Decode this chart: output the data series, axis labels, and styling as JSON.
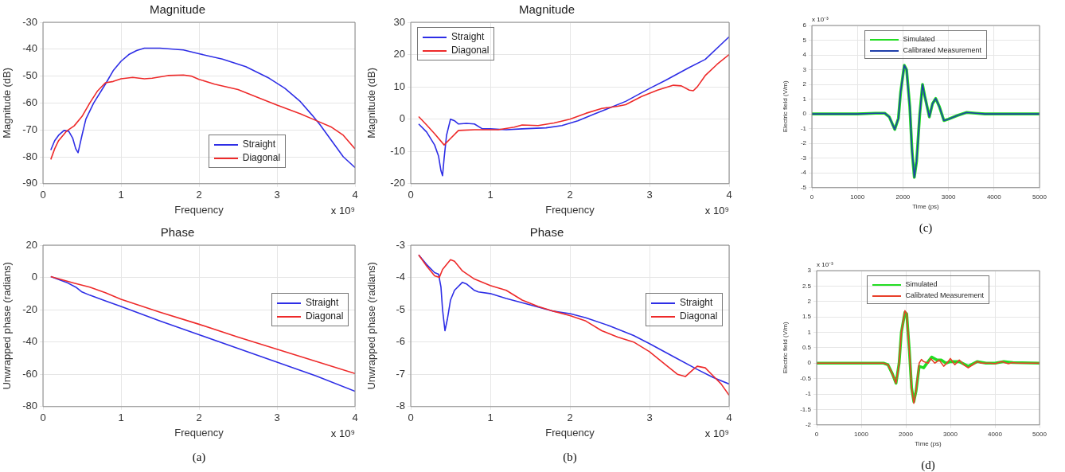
{
  "chart_data": [
    {
      "type": "line",
      "title": "Magnitude",
      "xlabel": "Frequency",
      "ylabel": "Magnitude (dB)",
      "xlim": [
        0,
        4
      ],
      "ylim": [
        -90,
        -30
      ],
      "xticks": [
        0,
        1,
        2,
        3,
        4
      ],
      "yticks": [
        -90,
        -80,
        -70,
        -60,
        -50,
        -40,
        -30
      ],
      "grid": true,
      "legend": "bottom right",
      "annotations": [
        "x 10⁹"
      ],
      "series": [
        {
          "name": "Straight",
          "color": "#2e2ee6",
          "x": [
            0.1,
            0.15,
            0.2,
            0.27,
            0.33,
            0.38,
            0.42,
            0.45,
            0.5,
            0.55,
            0.65,
            0.8,
            0.9,
            1.0,
            1.1,
            1.2,
            1.3,
            1.5,
            1.8,
            2.0,
            2.3,
            2.6,
            2.9,
            3.1,
            3.3,
            3.45,
            3.55,
            3.7,
            3.85,
            4.0
          ],
          "values": [
            -77.5,
            -74,
            -72,
            -70.2,
            -70.5,
            -73,
            -77,
            -78.5,
            -72,
            -66,
            -60,
            -53,
            -48,
            -44.5,
            -42,
            -40.5,
            -39.6,
            -39.6,
            -40.3,
            -41.7,
            -43.7,
            -46.5,
            -50.8,
            -54.5,
            -59.5,
            -64.5,
            -68,
            -74,
            -80,
            -84
          ]
        },
        {
          "name": "Diagonal",
          "color": "#ee2a2a",
          "x": [
            0.1,
            0.15,
            0.2,
            0.3,
            0.4,
            0.5,
            0.6,
            0.7,
            0.8,
            0.9,
            1.0,
            1.15,
            1.3,
            1.4,
            1.6,
            1.8,
            1.9,
            2.0,
            2.2,
            2.5,
            2.8,
            3.0,
            3.3,
            3.5,
            3.7,
            3.85,
            4.0
          ],
          "values": [
            -81,
            -77,
            -74,
            -70.5,
            -68.5,
            -65,
            -60,
            -55.5,
            -52.5,
            -52,
            -51,
            -50.5,
            -51,
            -50.8,
            -49.8,
            -49.6,
            -50,
            -51.2,
            -53,
            -55,
            -58.5,
            -60.8,
            -64,
            -66.5,
            -69,
            -72,
            -77
          ]
        }
      ]
    },
    {
      "type": "line",
      "title": "Magnitude",
      "xlabel": "Frequency",
      "ylabel": "Magnitude (dB)",
      "xlim": [
        0,
        4
      ],
      "ylim": [
        -20,
        30
      ],
      "xticks": [
        0,
        1,
        2,
        3,
        4
      ],
      "yticks": [
        -20,
        -10,
        0,
        10,
        20,
        30
      ],
      "grid": true,
      "legend": "top left",
      "annotations": [
        "x 10⁹"
      ],
      "series": [
        {
          "name": "Straight",
          "color": "#2e2ee6",
          "x": [
            0.1,
            0.2,
            0.3,
            0.35,
            0.38,
            0.4,
            0.42,
            0.45,
            0.5,
            0.55,
            0.6,
            0.7,
            0.8,
            0.9,
            1.0,
            1.2,
            1.4,
            1.7,
            1.9,
            2.1,
            2.3,
            2.5,
            2.7,
            3.0,
            3.2,
            3.5,
            3.7,
            4.0
          ],
          "values": [
            -1.5,
            -4,
            -8,
            -11.5,
            -16,
            -17.5,
            -12,
            -5,
            0,
            -0.5,
            -1.5,
            -1.3,
            -1.5,
            -3,
            -3,
            -3.3,
            -3,
            -2.7,
            -2,
            -0.5,
            1.5,
            3.5,
            5.5,
            9.5,
            12,
            16,
            18.5,
            25.5
          ]
        },
        {
          "name": "Diagonal",
          "color": "#ee2a2a",
          "x": [
            0.1,
            0.2,
            0.3,
            0.42,
            0.5,
            0.6,
            0.8,
            1.0,
            1.1,
            1.3,
            1.4,
            1.6,
            1.8,
            2.0,
            2.2,
            2.4,
            2.6,
            2.7,
            2.9,
            3.1,
            3.3,
            3.4,
            3.5,
            3.55,
            3.6,
            3.7,
            3.85,
            4.0
          ],
          "values": [
            0.8,
            -1.8,
            -4.5,
            -8,
            -6,
            -3.5,
            -3.3,
            -3.3,
            -3.3,
            -2.5,
            -1.8,
            -2,
            -1.2,
            0,
            1.8,
            3.3,
            4,
            4.5,
            7,
            9,
            10.5,
            10.3,
            9,
            8.8,
            10,
            13.5,
            17,
            20
          ]
        }
      ]
    },
    {
      "type": "line",
      "xlabel": "Time (ps)",
      "ylabel": "Electric field (V/m)",
      "xlim": [
        0,
        5000
      ],
      "ylim": [
        -5,
        6
      ],
      "xticks": [
        0,
        1000,
        2000,
        3000,
        4000,
        5000
      ],
      "yticks": [
        -5,
        -4,
        -3,
        -2,
        -1,
        0,
        1,
        2,
        3,
        4,
        5,
        6
      ],
      "grid": true,
      "legend": "top",
      "annotations": [
        "x 10⁻³",
        "(c)"
      ],
      "series": [
        {
          "name": "Simulated",
          "color": "#22dd22",
          "x": [
            0,
            500,
            1000,
            1400,
            1600,
            1700,
            1820,
            1900,
            1950,
            2030,
            2080,
            2150,
            2200,
            2250,
            2300,
            2370,
            2430,
            2480,
            2580,
            2650,
            2720,
            2800,
            2900,
            3000,
            3200,
            3400,
            3600,
            3800,
            4000,
            5000
          ],
          "values": [
            0,
            0,
            0,
            0.05,
            0.05,
            -0.2,
            -1.05,
            -0.3,
            1.5,
            3.3,
            3.0,
            0.5,
            -2.5,
            -4.3,
            -3.2,
            0,
            2.0,
            1.2,
            -0.2,
            0.7,
            1.05,
            0.5,
            -0.45,
            -0.35,
            -0.1,
            0.1,
            0.05,
            0,
            0,
            0
          ]
        },
        {
          "name": "Calibrated Measurement",
          "color": "#1f3faa",
          "x": [
            0,
            500,
            1000,
            1400,
            1600,
            1700,
            1820,
            1900,
            1950,
            2030,
            2080,
            2150,
            2200,
            2250,
            2300,
            2370,
            2430,
            2480,
            2580,
            2650,
            2720,
            2800,
            2900,
            3000,
            3200,
            3400,
            3600,
            3800,
            4000,
            5000
          ],
          "values": [
            0,
            0,
            0,
            0.05,
            0.05,
            -0.2,
            -1.05,
            -0.3,
            1.5,
            3.3,
            3.0,
            0.5,
            -2.5,
            -4.3,
            -3.2,
            0,
            2.0,
            1.2,
            -0.2,
            0.7,
            1.05,
            0.5,
            -0.45,
            -0.35,
            -0.1,
            0.1,
            0.05,
            0,
            0,
            0
          ]
        }
      ]
    },
    {
      "type": "line",
      "title": "Phase",
      "xlabel": "Frequency",
      "ylabel": "Unwrapped phase (radians)",
      "xlim": [
        0,
        4
      ],
      "ylim": [
        -80,
        20
      ],
      "xticks": [
        0,
        1,
        2,
        3,
        4
      ],
      "yticks": [
        -80,
        -60,
        -40,
        -20,
        0,
        20
      ],
      "grid": true,
      "legend": "right",
      "annotations": [
        "x 10⁹",
        "(a)"
      ],
      "series": [
        {
          "name": "Straight",
          "color": "#2e2ee6",
          "x": [
            0.1,
            0.3,
            0.42,
            0.5,
            0.6,
            0.8,
            1.0,
            1.5,
            2.0,
            2.5,
            3.0,
            3.5,
            4.0
          ],
          "values": [
            0.5,
            -3,
            -6,
            -9,
            -11,
            -14.5,
            -18,
            -27,
            -35.5,
            -44,
            -52.5,
            -61,
            -70.5
          ]
        },
        {
          "name": "Diagonal",
          "color": "#ee2a2a",
          "x": [
            0.1,
            0.4,
            0.6,
            0.8,
            1.0,
            1.5,
            2.0,
            2.5,
            3.0,
            3.5,
            4.0
          ],
          "values": [
            0.5,
            -3.5,
            -6,
            -9.5,
            -13.5,
            -21.5,
            -29,
            -37,
            -44.5,
            -52,
            -59.5
          ]
        }
      ]
    },
    {
      "type": "line",
      "title": "Phase",
      "xlabel": "Frequency",
      "ylabel": "Unwrapped phase (radians)",
      "xlim": [
        0,
        4
      ],
      "ylim": [
        -8,
        -3
      ],
      "xticks": [
        0,
        1,
        2,
        3,
        4
      ],
      "yticks": [
        -8,
        -7,
        -6,
        -5,
        -4,
        -3
      ],
      "grid": true,
      "legend": "right",
      "annotations": [
        "x 10⁹",
        "(b)"
      ],
      "series": [
        {
          "name": "Straight",
          "color": "#2e2ee6",
          "x": [
            0.1,
            0.2,
            0.3,
            0.35,
            0.38,
            0.4,
            0.43,
            0.46,
            0.5,
            0.55,
            0.65,
            0.7,
            0.8,
            0.85,
            1.0,
            1.2,
            1.5,
            1.8,
            2.0,
            2.2,
            2.5,
            2.8,
            3.0,
            3.3,
            3.6,
            3.8,
            4.0
          ],
          "values": [
            -3.3,
            -3.6,
            -3.85,
            -3.9,
            -4.3,
            -5,
            -5.65,
            -5.3,
            -4.7,
            -4.4,
            -4.15,
            -4.2,
            -4.4,
            -4.45,
            -4.5,
            -4.65,
            -4.85,
            -5.05,
            -5.12,
            -5.25,
            -5.5,
            -5.8,
            -6.05,
            -6.45,
            -6.85,
            -7.1,
            -7.3
          ]
        },
        {
          "name": "Diagonal",
          "color": "#ee2a2a",
          "x": [
            0.1,
            0.2,
            0.3,
            0.36,
            0.4,
            0.5,
            0.55,
            0.65,
            0.8,
            1.0,
            1.2,
            1.4,
            1.6,
            1.8,
            2.0,
            2.2,
            2.4,
            2.6,
            2.8,
            3.0,
            3.2,
            3.35,
            3.45,
            3.55,
            3.6,
            3.7,
            3.8,
            3.9,
            4.0
          ],
          "values": [
            -3.3,
            -3.65,
            -3.95,
            -4.0,
            -3.75,
            -3.45,
            -3.5,
            -3.8,
            -4.05,
            -4.25,
            -4.4,
            -4.7,
            -4.9,
            -5.05,
            -5.18,
            -5.35,
            -5.65,
            -5.85,
            -6.0,
            -6.3,
            -6.7,
            -7.0,
            -7.07,
            -6.85,
            -6.75,
            -6.8,
            -7.05,
            -7.3,
            -7.65
          ]
        }
      ]
    },
    {
      "type": "line",
      "xlabel": "Time (ps)",
      "ylabel": "Electric field (V/m)",
      "xlim": [
        0,
        5000
      ],
      "ylim": [
        -2,
        3
      ],
      "xticks": [
        0,
        1000,
        2000,
        3000,
        4000,
        5000
      ],
      "yticks": [
        -2,
        -1.5,
        -1,
        -0.5,
        0,
        0.5,
        1,
        1.5,
        2,
        2.5,
        3
      ],
      "grid": true,
      "legend": "top",
      "annotations": [
        "x 10⁻³",
        "(d)"
      ],
      "series": [
        {
          "name": "Simulated",
          "color": "#22dd22",
          "x": [
            0,
            1500,
            1600,
            1700,
            1780,
            1850,
            1900,
            1980,
            2020,
            2080,
            2130,
            2180,
            2230,
            2300,
            2400,
            2500,
            2580,
            2700,
            2800,
            2900,
            3000,
            3200,
            3400,
            3600,
            3800,
            4000,
            4200,
            4400,
            5000
          ],
          "values": [
            0,
            0,
            -0.05,
            -0.35,
            -0.65,
            0,
            1.0,
            1.65,
            1.6,
            0.4,
            -0.8,
            -1.25,
            -0.9,
            -0.1,
            -0.15,
            0.05,
            0.2,
            0.1,
            0.1,
            0,
            0.05,
            0.05,
            -0.1,
            0.05,
            0,
            0,
            0.05,
            0.02,
            0
          ]
        },
        {
          "name": "Calibrated Measurement",
          "color": "#e8402a",
          "x": [
            0,
            1000,
            1500,
            1600,
            1700,
            1780,
            1850,
            1900,
            1980,
            2020,
            2080,
            2130,
            2180,
            2230,
            2300,
            2350,
            2400,
            2500,
            2560,
            2650,
            2750,
            2850,
            2950,
            3000,
            3100,
            3200,
            3300,
            3400,
            3500,
            3600,
            3700,
            3900,
            4000,
            4150,
            4300,
            4400,
            4500,
            5000
          ],
          "values": [
            0,
            0,
            0,
            -0.05,
            -0.35,
            -0.65,
            0,
            1.0,
            1.7,
            1.6,
            0.4,
            -0.8,
            -1.3,
            -0.9,
            0,
            0.12,
            0.05,
            0,
            0.15,
            0,
            0.1,
            -0.1,
            0.05,
            0.15,
            -0.05,
            0.1,
            -0.05,
            -0.15,
            -0.05,
            0.05,
            0,
            0,
            -0.02,
            0.05,
            -0.02,
            0.02,
            0,
            0
          ]
        }
      ]
    }
  ]
}
